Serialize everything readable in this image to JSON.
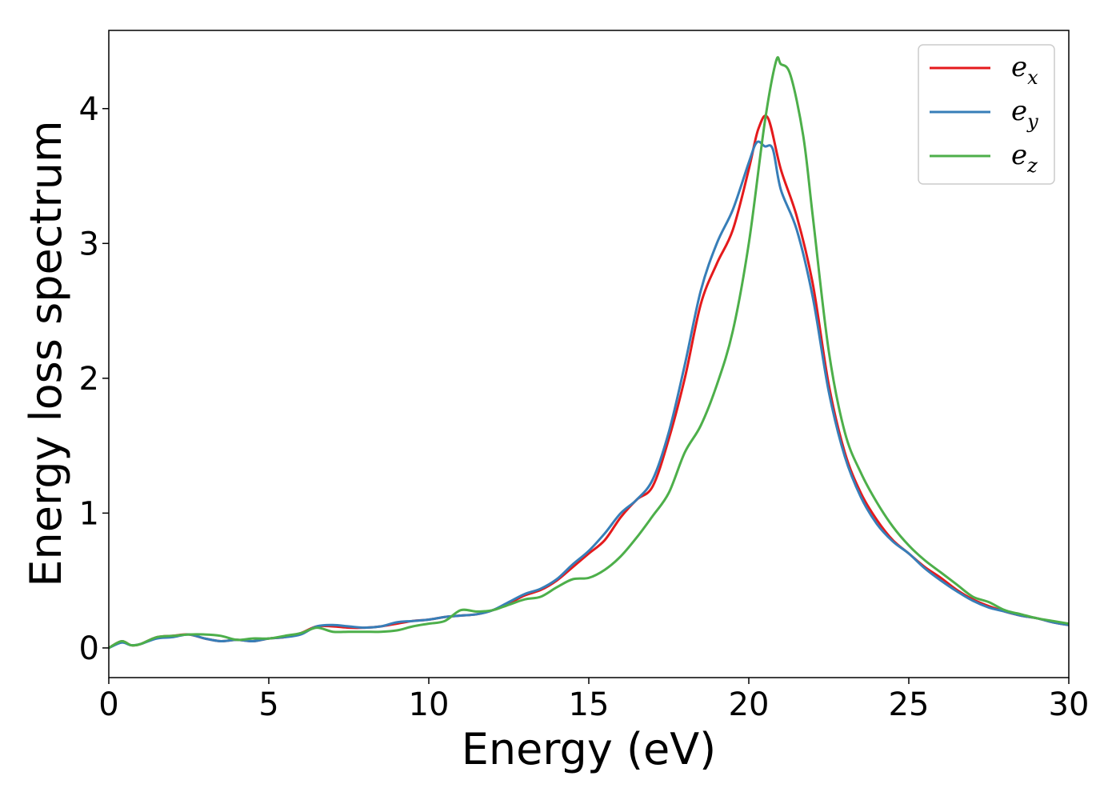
{
  "chart_data": {
    "type": "line",
    "title": "",
    "xlabel": "Energy (eV)",
    "ylabel": "Energy loss spectrum",
    "xlim": [
      0,
      30
    ],
    "ylim": [
      -0.22,
      4.58
    ],
    "xticks": [
      0,
      5,
      10,
      15,
      20,
      25,
      30
    ],
    "yticks": [
      0,
      1,
      2,
      3,
      4
    ],
    "grid": false,
    "legend_position": "top-right",
    "series": [
      {
        "name": "e",
        "subscript": "x",
        "color": "#e41a1c",
        "points": [
          [
            0,
            0
          ],
          [
            0.4,
            0.05
          ],
          [
            0.7,
            0.02
          ],
          [
            1,
            0.03
          ],
          [
            1.5,
            0.08
          ],
          [
            2,
            0.09
          ],
          [
            2.5,
            0.1
          ],
          [
            3,
            0.07
          ],
          [
            3.5,
            0.05
          ],
          [
            4,
            0.06
          ],
          [
            4.5,
            0.05
          ],
          [
            5,
            0.07
          ],
          [
            5.5,
            0.08
          ],
          [
            6,
            0.11
          ],
          [
            6.5,
            0.16
          ],
          [
            7,
            0.16
          ],
          [
            7.5,
            0.15
          ],
          [
            8,
            0.15
          ],
          [
            8.5,
            0.16
          ],
          [
            9,
            0.18
          ],
          [
            9.5,
            0.2
          ],
          [
            10,
            0.21
          ],
          [
            10.5,
            0.23
          ],
          [
            11,
            0.24
          ],
          [
            11.5,
            0.25
          ],
          [
            12,
            0.28
          ],
          [
            12.5,
            0.33
          ],
          [
            13,
            0.39
          ],
          [
            13.5,
            0.43
          ],
          [
            14,
            0.5
          ],
          [
            14.5,
            0.6
          ],
          [
            15,
            0.7
          ],
          [
            15.5,
            0.8
          ],
          [
            16,
            0.97
          ],
          [
            16.5,
            1.1
          ],
          [
            17,
            1.2
          ],
          [
            17.5,
            1.55
          ],
          [
            18,
            2.0
          ],
          [
            18.5,
            2.55
          ],
          [
            19,
            2.85
          ],
          [
            19.5,
            3.1
          ],
          [
            20,
            3.55
          ],
          [
            20.3,
            3.85
          ],
          [
            20.6,
            3.93
          ],
          [
            21,
            3.55
          ],
          [
            21.5,
            3.2
          ],
          [
            22,
            2.7
          ],
          [
            22.5,
            1.95
          ],
          [
            23,
            1.45
          ],
          [
            23.5,
            1.15
          ],
          [
            24,
            0.95
          ],
          [
            24.5,
            0.8
          ],
          [
            25,
            0.7
          ],
          [
            25.5,
            0.6
          ],
          [
            26,
            0.52
          ],
          [
            26.5,
            0.43
          ],
          [
            27,
            0.36
          ],
          [
            27.5,
            0.31
          ],
          [
            28,
            0.27
          ],
          [
            28.5,
            0.24
          ],
          [
            29,
            0.22
          ],
          [
            29.5,
            0.19
          ],
          [
            30,
            0.17
          ]
        ]
      },
      {
        "name": "e",
        "subscript": "y",
        "color": "#377eb8",
        "points": [
          [
            0,
            0
          ],
          [
            0.4,
            0.04
          ],
          [
            0.7,
            0.02
          ],
          [
            1,
            0.03
          ],
          [
            1.5,
            0.07
          ],
          [
            2,
            0.08
          ],
          [
            2.5,
            0.1
          ],
          [
            3,
            0.07
          ],
          [
            3.5,
            0.05
          ],
          [
            4,
            0.06
          ],
          [
            4.5,
            0.05
          ],
          [
            5,
            0.07
          ],
          [
            5.5,
            0.08
          ],
          [
            6,
            0.1
          ],
          [
            6.5,
            0.16
          ],
          [
            7,
            0.17
          ],
          [
            7.5,
            0.16
          ],
          [
            8,
            0.15
          ],
          [
            8.5,
            0.16
          ],
          [
            9,
            0.19
          ],
          [
            9.5,
            0.2
          ],
          [
            10,
            0.21
          ],
          [
            10.5,
            0.23
          ],
          [
            11,
            0.24
          ],
          [
            11.5,
            0.25
          ],
          [
            12,
            0.28
          ],
          [
            12.5,
            0.34
          ],
          [
            13,
            0.4
          ],
          [
            13.5,
            0.44
          ],
          [
            14,
            0.51
          ],
          [
            14.5,
            0.62
          ],
          [
            15,
            0.72
          ],
          [
            15.5,
            0.85
          ],
          [
            16,
            1.0
          ],
          [
            16.5,
            1.1
          ],
          [
            17,
            1.25
          ],
          [
            17.5,
            1.6
          ],
          [
            18,
            2.1
          ],
          [
            18.5,
            2.65
          ],
          [
            19,
            3.0
          ],
          [
            19.5,
            3.25
          ],
          [
            20,
            3.6
          ],
          [
            20.25,
            3.75
          ],
          [
            20.5,
            3.72
          ],
          [
            20.75,
            3.7
          ],
          [
            21,
            3.4
          ],
          [
            21.5,
            3.1
          ],
          [
            22,
            2.6
          ],
          [
            22.5,
            1.9
          ],
          [
            23,
            1.42
          ],
          [
            23.5,
            1.12
          ],
          [
            24,
            0.92
          ],
          [
            24.5,
            0.79
          ],
          [
            25,
            0.7
          ],
          [
            25.5,
            0.59
          ],
          [
            26,
            0.5
          ],
          [
            26.5,
            0.42
          ],
          [
            27,
            0.35
          ],
          [
            27.5,
            0.3
          ],
          [
            28,
            0.27
          ],
          [
            28.5,
            0.24
          ],
          [
            29,
            0.22
          ],
          [
            29.5,
            0.19
          ],
          [
            30,
            0.17
          ]
        ]
      },
      {
        "name": "e",
        "subscript": "z",
        "color": "#4daf4a",
        "points": [
          [
            0,
            0
          ],
          [
            0.4,
            0.05
          ],
          [
            0.7,
            0.02
          ],
          [
            1,
            0.03
          ],
          [
            1.5,
            0.08
          ],
          [
            2,
            0.09
          ],
          [
            2.5,
            0.1
          ],
          [
            3,
            0.1
          ],
          [
            3.5,
            0.09
          ],
          [
            4,
            0.06
          ],
          [
            4.5,
            0.07
          ],
          [
            5,
            0.07
          ],
          [
            5.5,
            0.09
          ],
          [
            6,
            0.11
          ],
          [
            6.5,
            0.15
          ],
          [
            7,
            0.12
          ],
          [
            7.5,
            0.12
          ],
          [
            8,
            0.12
          ],
          [
            8.5,
            0.12
          ],
          [
            9,
            0.13
          ],
          [
            9.5,
            0.16
          ],
          [
            10,
            0.18
          ],
          [
            10.5,
            0.2
          ],
          [
            11,
            0.28
          ],
          [
            11.5,
            0.27
          ],
          [
            12,
            0.28
          ],
          [
            12.5,
            0.32
          ],
          [
            13,
            0.36
          ],
          [
            13.5,
            0.38
          ],
          [
            14,
            0.45
          ],
          [
            14.5,
            0.51
          ],
          [
            15,
            0.52
          ],
          [
            15.5,
            0.58
          ],
          [
            16,
            0.68
          ],
          [
            16.5,
            0.82
          ],
          [
            17,
            0.98
          ],
          [
            17.5,
            1.15
          ],
          [
            18,
            1.45
          ],
          [
            18.5,
            1.65
          ],
          [
            19,
            1.95
          ],
          [
            19.5,
            2.35
          ],
          [
            20,
            3.0
          ],
          [
            20.5,
            3.9
          ],
          [
            20.85,
            4.35
          ],
          [
            21,
            4.33
          ],
          [
            21.3,
            4.25
          ],
          [
            21.7,
            3.8
          ],
          [
            22,
            3.2
          ],
          [
            22.5,
            2.2
          ],
          [
            23,
            1.6
          ],
          [
            23.5,
            1.3
          ],
          [
            24,
            1.08
          ],
          [
            24.5,
            0.9
          ],
          [
            25,
            0.76
          ],
          [
            25.5,
            0.65
          ],
          [
            26,
            0.56
          ],
          [
            26.5,
            0.47
          ],
          [
            27,
            0.38
          ],
          [
            27.5,
            0.34
          ],
          [
            28,
            0.28
          ],
          [
            28.5,
            0.25
          ],
          [
            29,
            0.22
          ],
          [
            29.5,
            0.2
          ],
          [
            30,
            0.18
          ]
        ]
      }
    ]
  }
}
